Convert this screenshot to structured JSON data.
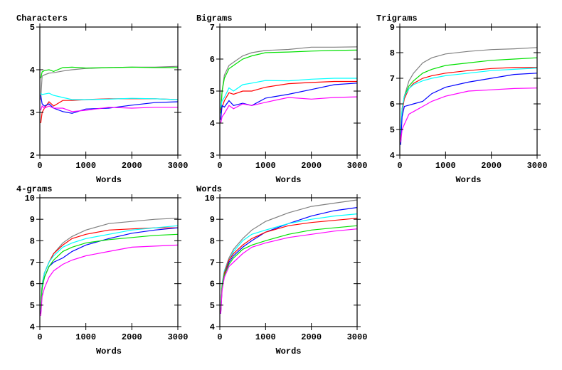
{
  "chart_data": [
    {
      "type": "line",
      "title": "Characters",
      "xlabel": "Words",
      "ylabel": "",
      "xlim": [
        0,
        3000
      ],
      "ylim": [
        2,
        5
      ],
      "xticks": [
        0,
        1000,
        2000,
        3000
      ],
      "yticks": [
        2,
        3,
        4,
        5
      ],
      "grid": false,
      "x": [
        20,
        50,
        100,
        200,
        300,
        500,
        700,
        1000,
        1500,
        2000,
        2500,
        3000
      ],
      "series": [
        {
          "color": "#808080",
          "values": [
            3.3,
            3.85,
            3.88,
            3.92,
            3.93,
            3.97,
            4.0,
            4.03,
            4.05,
            4.06,
            4.06,
            4.08
          ]
        },
        {
          "color": "#00e000",
          "values": [
            3.8,
            3.95,
            3.98,
            4.0,
            3.96,
            4.05,
            4.06,
            4.04,
            4.05,
            4.06,
            4.05,
            4.05
          ]
        },
        {
          "color": "#ff0000",
          "values": [
            2.75,
            3.0,
            3.1,
            3.25,
            3.15,
            3.28,
            3.28,
            3.3,
            3.32,
            3.32,
            3.32,
            3.3
          ]
        },
        {
          "color": "#00ffff",
          "values": [
            3.45,
            3.42,
            3.43,
            3.45,
            3.4,
            3.35,
            3.3,
            3.3,
            3.31,
            3.33,
            3.32,
            3.3
          ]
        },
        {
          "color": "#0000ff",
          "values": [
            3.4,
            3.2,
            3.15,
            3.2,
            3.1,
            3.02,
            2.98,
            3.08,
            3.1,
            3.17,
            3.23,
            3.25
          ]
        },
        {
          "color": "#ff00ff",
          "values": [
            3.05,
            3.15,
            3.1,
            3.15,
            3.1,
            3.1,
            3.02,
            3.05,
            3.12,
            3.1,
            3.12,
            3.12
          ]
        }
      ]
    },
    {
      "type": "line",
      "title": "Bigrams",
      "xlabel": "Words",
      "ylabel": "",
      "xlim": [
        0,
        3000
      ],
      "ylim": [
        3,
        7
      ],
      "xticks": [
        0,
        1000,
        2000,
        3000
      ],
      "yticks": [
        3,
        4,
        5,
        6,
        7
      ],
      "grid": false,
      "x": [
        20,
        50,
        100,
        200,
        300,
        500,
        700,
        1000,
        1500,
        2000,
        2500,
        3000
      ],
      "series": [
        {
          "color": "#808080",
          "values": [
            4.4,
            5.0,
            5.5,
            5.8,
            5.9,
            6.1,
            6.2,
            6.27,
            6.3,
            6.37,
            6.37,
            6.38
          ]
        },
        {
          "color": "#00e000",
          "values": [
            4.3,
            5.0,
            5.4,
            5.7,
            5.8,
            6.0,
            6.1,
            6.2,
            6.22,
            6.25,
            6.27,
            6.28
          ]
        },
        {
          "color": "#ff0000",
          "values": [
            4.4,
            4.5,
            4.7,
            4.95,
            4.9,
            5.0,
            5.0,
            5.12,
            5.23,
            5.27,
            5.3,
            5.3
          ]
        },
        {
          "color": "#00ffff",
          "values": [
            4.5,
            4.7,
            4.8,
            5.1,
            5.0,
            5.2,
            5.25,
            5.33,
            5.32,
            5.37,
            5.4,
            5.4
          ]
        },
        {
          "color": "#0000ff",
          "values": [
            4.1,
            4.55,
            4.5,
            4.7,
            4.55,
            4.62,
            4.55,
            4.78,
            4.9,
            5.05,
            5.2,
            5.25
          ]
        },
        {
          "color": "#ff00ff",
          "values": [
            4.0,
            4.2,
            4.3,
            4.55,
            4.45,
            4.6,
            4.55,
            4.65,
            4.8,
            4.75,
            4.8,
            4.82
          ]
        }
      ]
    },
    {
      "type": "line",
      "title": "Trigrams",
      "xlabel": "Words",
      "ylabel": "",
      "xlim": [
        0,
        3000
      ],
      "ylim": [
        4,
        9
      ],
      "xticks": [
        0,
        1000,
        2000,
        3000
      ],
      "yticks": [
        4,
        5,
        6,
        7,
        8,
        9
      ],
      "grid": false,
      "x": [
        20,
        50,
        100,
        200,
        300,
        500,
        700,
        1000,
        1500,
        2000,
        2500,
        3000
      ],
      "series": [
        {
          "color": "#808080",
          "values": [
            4.5,
            5.8,
            6.3,
            6.9,
            7.2,
            7.6,
            7.8,
            7.95,
            8.05,
            8.12,
            8.15,
            8.2
          ]
        },
        {
          "color": "#00e000",
          "values": [
            4.8,
            5.8,
            6.3,
            6.7,
            6.9,
            7.2,
            7.35,
            7.5,
            7.6,
            7.7,
            7.75,
            7.8
          ]
        },
        {
          "color": "#ff0000",
          "values": [
            4.6,
            5.7,
            6.2,
            6.6,
            6.8,
            7.0,
            7.1,
            7.2,
            7.3,
            7.38,
            7.42,
            7.42
          ]
        },
        {
          "color": "#00ffff",
          "values": [
            4.8,
            5.8,
            6.3,
            6.6,
            6.75,
            6.9,
            7.0,
            7.1,
            7.2,
            7.3,
            7.35,
            7.4
          ]
        },
        {
          "color": "#0000ff",
          "values": [
            4.4,
            5.5,
            5.9,
            5.95,
            6.0,
            6.1,
            6.4,
            6.65,
            6.85,
            7.0,
            7.15,
            7.2
          ]
        },
        {
          "color": "#ff00ff",
          "values": [
            4.5,
            5.0,
            5.2,
            5.6,
            5.7,
            5.9,
            6.1,
            6.3,
            6.5,
            6.55,
            6.6,
            6.62
          ]
        }
      ]
    },
    {
      "type": "line",
      "title": "4-grams",
      "xlabel": "Words",
      "ylabel": "",
      "xlim": [
        0,
        3000
      ],
      "ylim": [
        4,
        10
      ],
      "xticks": [
        0,
        1000,
        2000,
        3000
      ],
      "yticks": [
        4,
        5,
        6,
        7,
        8,
        9,
        10
      ],
      "grid": false,
      "x": [
        20,
        50,
        100,
        200,
        300,
        500,
        700,
        1000,
        1500,
        2000,
        2500,
        3000
      ],
      "series": [
        {
          "color": "#808080",
          "values": [
            4.6,
            6.0,
            6.5,
            7.0,
            7.4,
            7.9,
            8.2,
            8.5,
            8.8,
            8.9,
            9.0,
            9.05
          ]
        },
        {
          "color": "#ff0000",
          "values": [
            4.6,
            5.9,
            6.5,
            7.0,
            7.4,
            7.8,
            8.1,
            8.3,
            8.5,
            8.55,
            8.6,
            8.6
          ]
        },
        {
          "color": "#00ffff",
          "values": [
            4.8,
            5.9,
            6.5,
            7.0,
            7.3,
            7.7,
            7.9,
            8.1,
            8.3,
            8.5,
            8.6,
            8.7
          ]
        },
        {
          "color": "#0000ff",
          "values": [
            4.6,
            5.8,
            6.3,
            6.8,
            7.0,
            7.2,
            7.5,
            7.8,
            8.1,
            8.35,
            8.5,
            8.6
          ]
        },
        {
          "color": "#00e000",
          "values": [
            4.8,
            5.8,
            6.3,
            6.8,
            7.1,
            7.5,
            7.7,
            7.9,
            8.05,
            8.15,
            8.25,
            8.3
          ]
        },
        {
          "color": "#ff00ff",
          "values": [
            4.5,
            5.4,
            5.8,
            6.3,
            6.6,
            6.9,
            7.1,
            7.3,
            7.5,
            7.7,
            7.75,
            7.8
          ]
        }
      ]
    },
    {
      "type": "line",
      "title": "Words",
      "xlabel": "Words",
      "ylabel": "",
      "xlim": [
        0,
        3000
      ],
      "ylim": [
        4,
        10
      ],
      "xticks": [
        0,
        1000,
        2000,
        3000
      ],
      "yticks": [
        4,
        5,
        6,
        7,
        8,
        9,
        10
      ],
      "grid": false,
      "x": [
        20,
        50,
        100,
        200,
        300,
        500,
        700,
        1000,
        1500,
        2000,
        2500,
        3000
      ],
      "series": [
        {
          "color": "#808080",
          "values": [
            4.6,
            6.0,
            6.6,
            7.2,
            7.6,
            8.1,
            8.5,
            8.9,
            9.3,
            9.6,
            9.75,
            9.9
          ]
        },
        {
          "color": "#0000ff",
          "values": [
            4.6,
            5.8,
            6.4,
            7.0,
            7.3,
            7.7,
            8.0,
            8.4,
            8.8,
            9.15,
            9.4,
            9.55
          ]
        },
        {
          "color": "#00ffff",
          "values": [
            4.8,
            6.0,
            6.6,
            7.1,
            7.5,
            8.0,
            8.3,
            8.5,
            8.8,
            9.0,
            9.15,
            9.25
          ]
        },
        {
          "color": "#ff0000",
          "values": [
            4.7,
            5.9,
            6.5,
            7.1,
            7.4,
            7.8,
            8.1,
            8.4,
            8.7,
            8.85,
            8.95,
            9.05
          ]
        },
        {
          "color": "#00e000",
          "values": [
            4.8,
            5.9,
            6.4,
            6.9,
            7.2,
            7.6,
            7.8,
            8.0,
            8.3,
            8.5,
            8.6,
            8.7
          ]
        },
        {
          "color": "#ff00ff",
          "values": [
            4.6,
            5.7,
            6.3,
            6.8,
            7.0,
            7.4,
            7.7,
            7.9,
            8.15,
            8.3,
            8.45,
            8.55
          ]
        }
      ]
    }
  ]
}
